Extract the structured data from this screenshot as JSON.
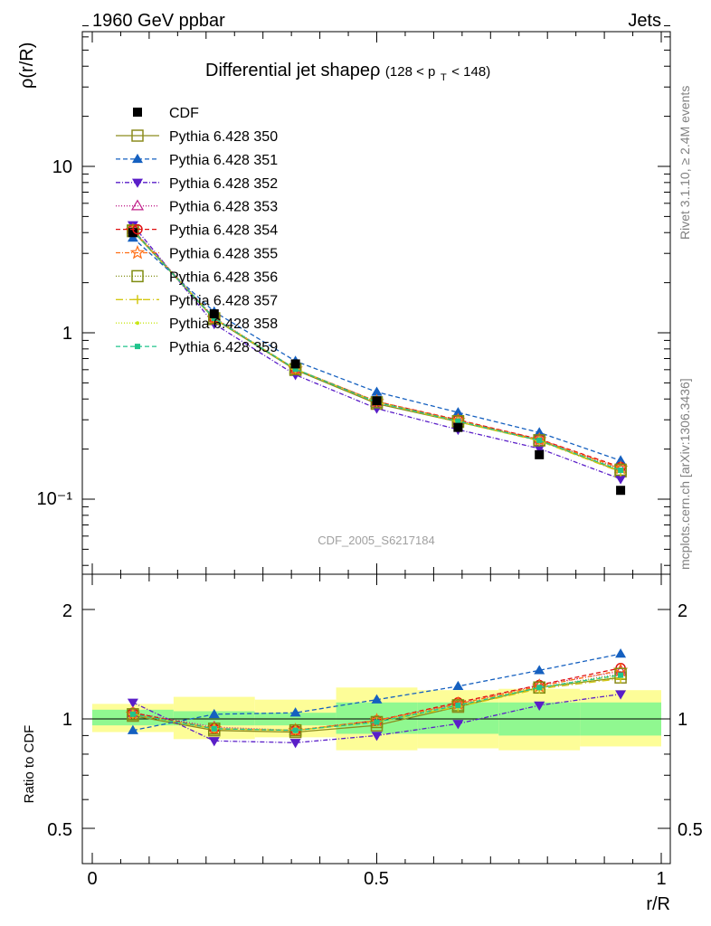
{
  "header": {
    "left": "1960 GeV ppbar",
    "right": "Jets"
  },
  "side_text": {
    "rivet": "Rivet 3.1.10, ≥ 2.4M events",
    "mcplots": "mcplots.cern.ch [arXiv:1306.3436]"
  },
  "main_title": {
    "text": "Differential jet shapeρ",
    "range": "(128 < p",
    "range_sub": "T",
    "range_end": " < 148)"
  },
  "watermark": "CDF_2005_S6217184",
  "axes": {
    "main_ylabel": "ρ(r/R)",
    "ratio_ylabel": "Ratio to CDF",
    "xlabel": "r/R",
    "main_yticks": [
      "10⁻¹",
      "1",
      "10"
    ],
    "ratio_yticks": [
      "0.5",
      "1",
      "2"
    ],
    "xticks": [
      "0",
      "0.5",
      "1"
    ]
  },
  "colors": {
    "band_inner": "#90f890",
    "band_outer": "#fdfd98"
  },
  "chart_data": {
    "type": "line",
    "xlabel": "r/R",
    "ylabel": "ρ(r/R)",
    "xlim": [
      0,
      1
    ],
    "ylim_main": [
      0.035,
      70
    ],
    "yscale_main": "log",
    "ylim_ratio": [
      0.4,
      2.4
    ],
    "yscale_ratio": "log",
    "legend_position": "top-left",
    "x": [
      0.0714,
      0.2143,
      0.3571,
      0.5,
      0.6429,
      0.7857,
      0.9286
    ],
    "x_edges": [
      0,
      0.1429,
      0.2857,
      0.4286,
      0.5714,
      0.7143,
      0.8571,
      1.0
    ],
    "data": {
      "name": "CDF",
      "values": [
        4.0,
        1.3,
        0.65,
        0.39,
        0.27,
        0.185,
        0.113
      ]
    },
    "ratio_band_inner": [
      [
        0.96,
        1.06
      ],
      [
        0.96,
        1.05
      ],
      [
        0.96,
        1.04
      ],
      [
        0.91,
        1.11
      ],
      [
        0.91,
        1.11
      ],
      [
        0.9,
        1.11
      ],
      [
        0.9,
        1.11
      ]
    ],
    "ratio_band_outer": [
      [
        0.92,
        1.1
      ],
      [
        0.88,
        1.15
      ],
      [
        0.89,
        1.13
      ],
      [
        0.82,
        1.22
      ],
      [
        0.83,
        1.2
      ],
      [
        0.82,
        1.21
      ],
      [
        0.84,
        1.2
      ]
    ],
    "series": [
      {
        "name": "Pythia 6.428 350",
        "color": "#8c8c1e",
        "dash": "solid",
        "marker": "square-open",
        "ratio": [
          1.02,
          0.93,
          0.92,
          0.96,
          1.08,
          1.22,
          1.3
        ]
      },
      {
        "name": "Pythia 6.428 351",
        "color": "#1560c0",
        "dash": "5,3",
        "marker": "triangle-up",
        "ratio": [
          0.93,
          1.03,
          1.04,
          1.13,
          1.23,
          1.36,
          1.51
        ]
      },
      {
        "name": "Pythia 6.428 352",
        "color": "#5a1ec8",
        "dash": "5,2,1,2",
        "marker": "triangle-down",
        "ratio": [
          1.11,
          0.87,
          0.86,
          0.9,
          0.97,
          1.09,
          1.17
        ]
      },
      {
        "name": "Pythia 6.428 353",
        "color": "#c0208a",
        "dash": "1,2",
        "marker": "triangle-open",
        "ratio": [
          1.04,
          0.95,
          0.93,
          0.99,
          1.1,
          1.24,
          1.35
        ]
      },
      {
        "name": "Pythia 6.428 354",
        "color": "#e01010",
        "dash": "5,3",
        "marker": "circle-open",
        "ratio": [
          1.04,
          0.94,
          0.93,
          0.99,
          1.11,
          1.24,
          1.38
        ]
      },
      {
        "name": "Pythia 6.428 355",
        "color": "#ff6e14",
        "dash": "5,2,1,2",
        "marker": "star-open",
        "ratio": [
          1.03,
          0.94,
          0.93,
          0.99,
          1.1,
          1.23,
          1.36
        ]
      },
      {
        "name": "Pythia 6.428 356",
        "color": "#7f8c10",
        "dash": "1,2",
        "marker": "square-open",
        "ratio": [
          1.03,
          0.94,
          0.93,
          0.98,
          1.09,
          1.22,
          1.33
        ]
      },
      {
        "name": "Pythia 6.428 357",
        "color": "#d4c814",
        "dash": "8,3,1,3",
        "marker": "cross",
        "ratio": [
          1.03,
          0.94,
          0.93,
          0.98,
          1.08,
          1.21,
          1.29
        ]
      },
      {
        "name": "Pythia 6.428 358",
        "color": "#c8e614",
        "dash": "1,2",
        "marker": "dot",
        "ratio": [
          1.03,
          0.94,
          0.93,
          0.98,
          1.09,
          1.22,
          1.31
        ]
      },
      {
        "name": "Pythia 6.428 359",
        "color": "#20c48c",
        "dash": "5,3",
        "marker": "square-filled",
        "ratio": [
          1.03,
          0.94,
          0.93,
          0.98,
          1.09,
          1.22,
          1.32
        ]
      }
    ]
  }
}
